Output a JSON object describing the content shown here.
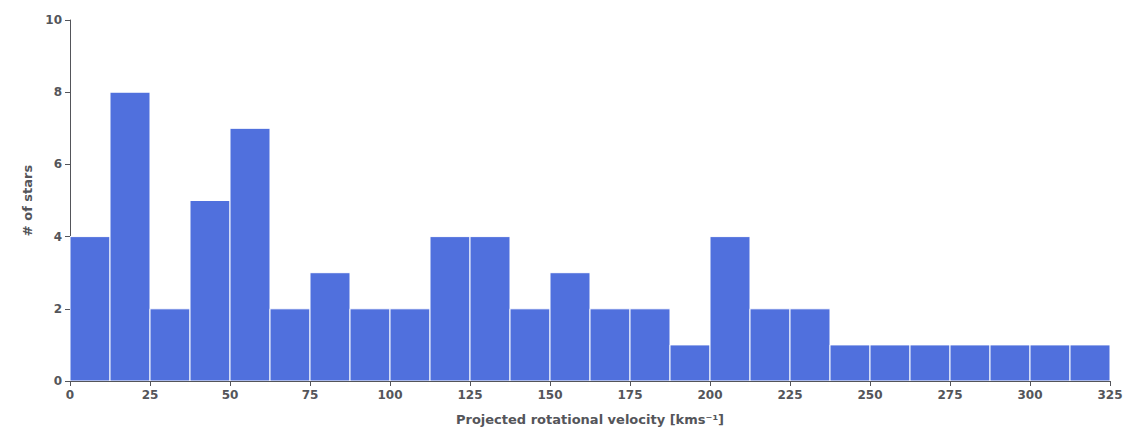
{
  "chart_data": {
    "type": "histogram",
    "bins": [
      0,
      12.5,
      25,
      37.5,
      50,
      62.5,
      75,
      87.5,
      100,
      112.5,
      125,
      137.5,
      150,
      162.5,
      175,
      187.5,
      200,
      212.5,
      225,
      237.5,
      250,
      262.5,
      275,
      287.5,
      300,
      312.5,
      325
    ],
    "counts": [
      4,
      8,
      2,
      5,
      7,
      2,
      3,
      2,
      2,
      4,
      4,
      2,
      3,
      2,
      2,
      1,
      4,
      2,
      2,
      1,
      1,
      1,
      1,
      1,
      1,
      1
    ],
    "xlim": [
      0,
      325
    ],
    "ylim": [
      0,
      10
    ],
    "xticks": [
      0,
      25,
      50,
      75,
      100,
      125,
      150,
      175,
      200,
      225,
      250,
      275,
      300,
      325
    ],
    "yticks": [
      0,
      2,
      4,
      6,
      8,
      10
    ],
    "xlabel": "Projected rotational velocity [kms⁻¹]",
    "ylabel": "# of stars",
    "grid": false
  }
}
